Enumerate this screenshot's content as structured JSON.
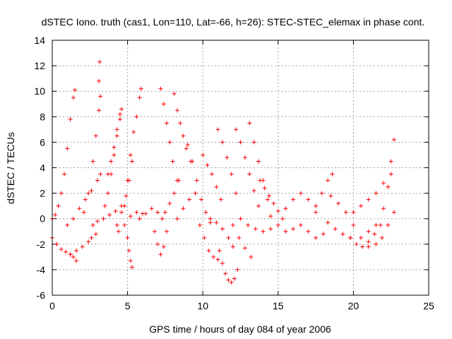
{
  "chart_data": {
    "type": "scatter",
    "title": "dSTEC Iono. truth (cas1, Lon=110, Lat=-66, h=26): STEC-STEC_elemax in phase cont.",
    "xlabel": "GPS time / hours of day 084 of year 2006",
    "ylabel": "dSTEC  / TECUs",
    "xlim": [
      0,
      25
    ],
    "ylim": [
      -6,
      14
    ],
    "x_ticks": [
      "0",
      "5",
      "10",
      "15",
      "20",
      "25"
    ],
    "y_ticks": [
      "-6",
      "-4",
      "-2",
      "0",
      "2",
      "4",
      "6",
      "8",
      "10",
      "12",
      "14"
    ],
    "grid": true,
    "legend": "none",
    "marker": "+",
    "color": "#ff0000",
    "arcs": [
      {
        "x": [
          0.0,
          0.2,
          0.4,
          0.6,
          0.8,
          1.0,
          1.2,
          1.4,
          1.5
        ],
        "y": [
          0.0,
          0.3,
          1.0,
          2.0,
          3.5,
          5.5,
          7.8,
          9.5,
          10.1
        ]
      },
      {
        "x": [
          0.0,
          0.3,
          0.6,
          0.9,
          1.2,
          1.4,
          1.6
        ],
        "y": [
          -1.5,
          -2.0,
          -2.4,
          -2.6,
          -2.8,
          -3.0,
          -3.3
        ]
      },
      {
        "x": [
          1.2,
          1.6,
          2.0,
          2.4,
          2.6,
          2.9
        ],
        "y": [
          -2.8,
          -2.5,
          -2.2,
          -1.8,
          -1.5,
          -1.2
        ]
      },
      {
        "x": [
          1.0,
          1.4,
          1.8,
          2.2,
          2.6,
          3.0,
          3.2
        ],
        "y": [
          -0.5,
          0.0,
          0.8,
          1.5,
          2.2,
          3.0,
          3.5
        ]
      },
      {
        "x": [
          2.1,
          2.4,
          2.7,
          2.9,
          3.1,
          3.2
        ],
        "y": [
          0.5,
          2.0,
          4.5,
          6.5,
          8.5,
          9.6
        ]
      },
      {
        "x": [
          3.15
        ],
        "y": [
          12.3
        ]
      },
      {
        "x": [
          3.1
        ],
        "y": [
          10.8
        ]
      },
      {
        "x": [
          2.7,
          3.0,
          3.4,
          3.8,
          4.2,
          4.6
        ],
        "y": [
          -0.5,
          -0.2,
          0.0,
          0.3,
          0.6,
          1.0
        ]
      },
      {
        "x": [
          3.5,
          3.7,
          3.9,
          4.1,
          4.3,
          4.5,
          4.6
        ],
        "y": [
          1.0,
          2.0,
          3.5,
          5.0,
          6.5,
          7.8,
          8.6
        ]
      },
      {
        "x": [
          3.7,
          3.9,
          4.1,
          4.3,
          4.5
        ],
        "y": [
          3.5,
          4.5,
          5.6,
          7.0,
          8.2
        ]
      },
      {
        "x": [
          4.3,
          4.6,
          4.9,
          5.1,
          5.3
        ],
        "y": [
          -0.5,
          0.5,
          1.8,
          3.0,
          4.5
        ]
      },
      {
        "x": [
          4.4,
          4.8,
          5.2,
          5.6,
          6.0
        ],
        "y": [
          -1.0,
          -0.5,
          0.2,
          0.5,
          0.4
        ]
      },
      {
        "x": [
          4.8,
          5.0,
          5.2,
          5.4,
          5.6,
          5.8,
          5.9
        ],
        "y": [
          1.0,
          3.0,
          5.0,
          6.8,
          8.0,
          9.5,
          10.2
        ]
      },
      {
        "x": [
          5.0,
          5.1,
          5.2,
          5.3
        ],
        "y": [
          -1.5,
          -2.5,
          -3.3,
          -3.8
        ]
      },
      {
        "x": [
          5.8,
          6.2,
          6.6,
          7.0,
          7.3
        ],
        "y": [
          0.0,
          0.4,
          0.8,
          0.5,
          0.0
        ]
      },
      {
        "x": [
          6.8,
          7.0,
          7.2,
          7.4,
          7.6
        ],
        "y": [
          -1.0,
          -2.0,
          -2.8,
          -2.2,
          -1.0
        ]
      },
      {
        "x": [
          7.2,
          7.4,
          7.6,
          7.8,
          8.0,
          8.3
        ],
        "y": [
          10.2,
          9.0,
          7.5,
          6.0,
          4.5,
          3.0
        ]
      },
      {
        "x": [
          7.5,
          7.8,
          8.1,
          8.4
        ],
        "y": [
          0.5,
          1.2,
          2.0,
          3.0
        ]
      },
      {
        "x": [
          8.1,
          8.3,
          8.5,
          8.7,
          8.9,
          9.2
        ],
        "y": [
          9.8,
          8.5,
          7.5,
          6.5,
          5.5,
          4.5
        ]
      },
      {
        "x": [
          8.3,
          8.7,
          9.1,
          9.5
        ],
        "y": [
          0.0,
          0.8,
          1.5,
          2.0
        ]
      },
      {
        "x": [
          9.0,
          9.3,
          9.6,
          9.9,
          10.2,
          10.5
        ],
        "y": [
          5.8,
          4.5,
          3.0,
          1.5,
          0.5,
          -0.3
        ]
      },
      {
        "x": [
          9.8,
          10.1,
          10.4,
          10.7,
          11.0
        ],
        "y": [
          -0.5,
          -1.5,
          -2.5,
          -3.0,
          -3.2
        ]
      },
      {
        "x": [
          10.0,
          10.3,
          10.6,
          10.9,
          11.2
        ],
        "y": [
          5.0,
          4.2,
          3.5,
          2.5,
          1.5
        ]
      },
      {
        "x": [
          10.5,
          10.9,
          11.3,
          11.7,
          12.0
        ],
        "y": [
          0.0,
          -0.3,
          -0.8,
          -1.5,
          -2.2
        ]
      },
      {
        "x": [
          11.1,
          11.3,
          11.5,
          11.7,
          11.9,
          12.1,
          12.3
        ],
        "y": [
          -2.5,
          -3.5,
          -4.3,
          -4.8,
          -5.0,
          -4.7,
          -4.0
        ]
      },
      {
        "x": [
          11.0,
          11.3,
          11.6,
          11.9,
          12.2
        ],
        "y": [
          7.0,
          6.0,
          4.8,
          3.5,
          2.0
        ]
      },
      {
        "x": [
          12.0,
          12.4,
          12.8,
          13.2
        ],
        "y": [
          -0.5,
          -1.5,
          -2.3,
          -3.0
        ]
      },
      {
        "x": [
          12.2,
          12.5,
          12.8,
          13.1,
          13.4,
          13.7
        ],
        "y": [
          7.0,
          6.0,
          4.8,
          3.5,
          2.2,
          1.0
        ]
      },
      {
        "x": [
          13.1,
          13.4,
          13.7,
          14.0,
          14.3
        ],
        "y": [
          7.5,
          6.0,
          4.5,
          3.0,
          1.5
        ]
      },
      {
        "x": [
          12.5,
          13.0,
          13.5,
          14.0,
          14.5
        ],
        "y": [
          0.0,
          -0.5,
          -0.8,
          -1.0,
          -0.8
        ]
      },
      {
        "x": [
          13.8,
          14.1,
          14.4,
          14.7,
          15.0,
          15.3
        ],
        "y": [
          3.0,
          2.4,
          1.8,
          1.2,
          0.6,
          0.0
        ]
      },
      {
        "x": [
          14.5,
          15.0,
          15.5,
          16.0
        ],
        "y": [
          0.2,
          -0.5,
          -1.0,
          -0.8
        ]
      },
      {
        "x": [
          15.5,
          16.0,
          16.5,
          17.0,
          17.5
        ],
        "y": [
          0.8,
          1.5,
          2.0,
          1.5,
          0.5
        ]
      },
      {
        "x": [
          16.5,
          17.0,
          17.5,
          18.0
        ],
        "y": [
          -0.5,
          -1.0,
          -1.5,
          -1.2
        ]
      },
      {
        "x": [
          17.5,
          17.9,
          18.3,
          18.6
        ],
        "y": [
          1.0,
          2.0,
          3.0,
          3.5
        ]
      },
      {
        "x": [
          18.3,
          18.8,
          19.3,
          19.8
        ],
        "y": [
          -0.3,
          -0.8,
          -1.2,
          -1.5
        ]
      },
      {
        "x": [
          18.5,
          19.0,
          19.5,
          20.0,
          20.5,
          21.0
        ],
        "y": [
          1.8,
          1.2,
          0.5,
          -0.5,
          -1.5,
          -2.2
        ]
      },
      {
        "x": [
          19.8,
          20.2,
          20.6,
          21.0,
          21.4,
          21.8
        ],
        "y": [
          -1.5,
          -2.0,
          -2.2,
          -1.8,
          -1.2,
          -0.5
        ]
      },
      {
        "x": [
          20.0,
          20.5,
          21.0,
          21.5,
          22.0,
          22.5
        ],
        "y": [
          0.5,
          1.0,
          1.5,
          2.0,
          2.8,
          3.5
        ]
      },
      {
        "x": [
          21.0,
          21.5,
          22.0,
          22.3,
          22.5,
          22.7
        ],
        "y": [
          -1.0,
          -0.5,
          0.8,
          2.5,
          4.5,
          6.2
        ]
      },
      {
        "x": [
          21.5,
          21.9,
          22.3,
          22.7
        ],
        "y": [
          -2.0,
          -1.5,
          -0.5,
          0.5
        ]
      }
    ]
  }
}
